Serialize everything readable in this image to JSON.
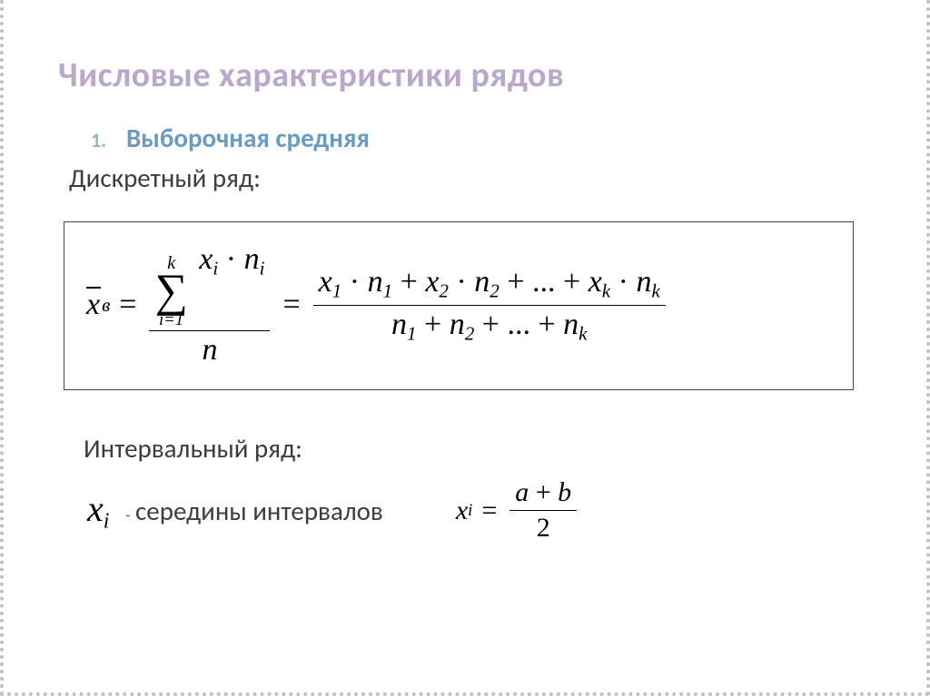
{
  "title": "Числовые характеристики рядов",
  "list": {
    "num": "1.",
    "label": "Выборочная средняя"
  },
  "discrete_label": "Дискретный ряд:",
  "formula_main": {
    "lhs_var": "x",
    "lhs_sub": "в",
    "sum_upper": "k",
    "sum_lower": "i=1",
    "sum_body_x": "x",
    "sum_body_xsub": "i",
    "sum_body_n": "n",
    "sum_body_nsub": "i",
    "denom": "n",
    "exp_num": "x₁ · n₁ + x₂ · n₂ + ... + x_k · n_k",
    "exp_den": "n₁ + n₂ + ... + n_k"
  },
  "interval_label": "Интервальный ряд:",
  "xi_var": "x",
  "xi_sub": "i",
  "mid_dash": "-",
  "mid_text": "середины интервалов",
  "formula_mid": {
    "lhs_x": "x",
    "lhs_sub": "i",
    "num_a": "a",
    "num_plus": "+",
    "num_b": "b",
    "den": "2"
  },
  "colors": {
    "title": "#b9a8cc",
    "accent": "#6a9bc4",
    "listnum": "#8eb4d4",
    "text": "#3d3d3d",
    "border_dotted": "#c0c0c0",
    "eqborder": "#444444",
    "bg": "#ffffff"
  },
  "fonts": {
    "title_size": 38,
    "body_size": 29,
    "math_main": 34,
    "xi_large": 40,
    "math_small": 30
  }
}
